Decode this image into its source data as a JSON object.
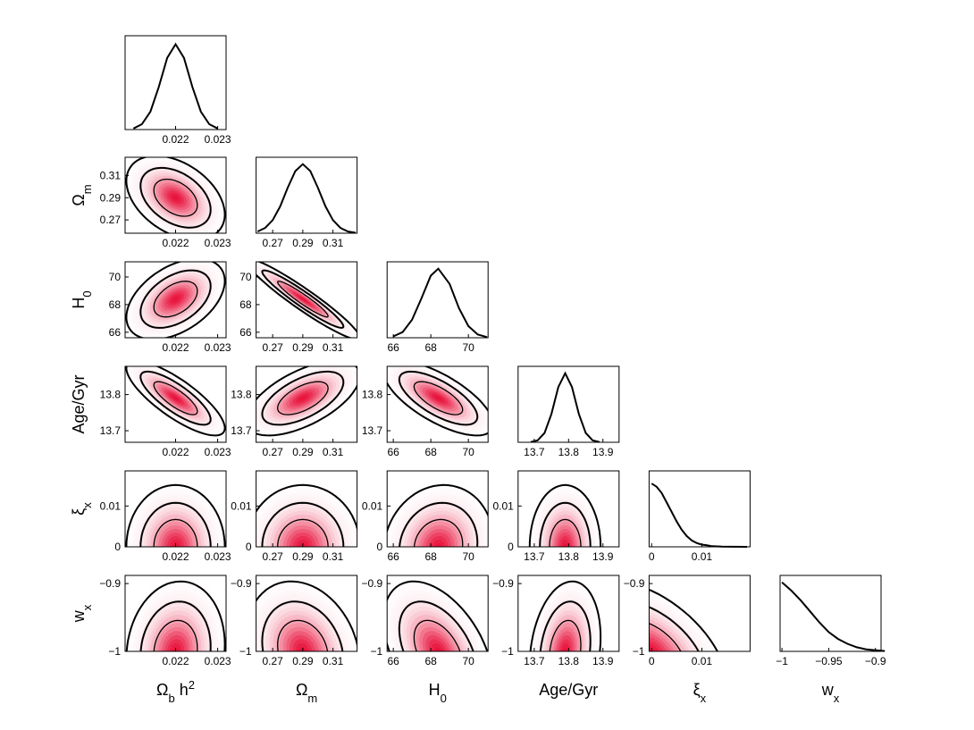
{
  "chart_data": {
    "type": "corner",
    "colors": {
      "line": "#000000",
      "density": "#e8103a"
    },
    "contour_levels": [
      1.52,
      2.45,
      3.44
    ],
    "parameters": [
      {
        "label": [
          {
            "text": "Ω"
          },
          {
            "text": "b",
            "sub": true
          },
          {
            "text": " h"
          },
          {
            "text": "2",
            "sup": true
          }
        ],
        "xlim": [
          0.0208,
          0.0232
        ],
        "xticks": [
          0.022,
          0.023
        ],
        "mean": 0.022,
        "sigma": 0.00034,
        "marginal": {
          "ylim": [
            0,
            1.1
          ],
          "x": [
            0.021,
            0.0212,
            0.0214,
            0.0216,
            0.0218,
            0.022,
            0.0222,
            0.0224,
            0.0226,
            0.0228,
            0.023
          ],
          "y": [
            0.013,
            0.063,
            0.21,
            0.5,
            0.84,
            1,
            0.84,
            0.5,
            0.21,
            0.063,
            0.013
          ]
        }
      },
      {
        "label": [
          {
            "text": "Ω"
          },
          {
            "text": "m",
            "sub": true
          }
        ],
        "xlim": [
          0.259,
          0.326
        ],
        "xticks": [
          0.27,
          0.29,
          0.31
        ],
        "ylim": [
          0.258,
          0.3265
        ],
        "yticks": [
          0.27,
          0.29,
          0.31
        ],
        "mean": 0.29,
        "sigma": 0.011,
        "marginal": {
          "ylim": [
            0,
            1.1
          ],
          "x": [
            0.26,
            0.265,
            0.27,
            0.275,
            0.28,
            0.285,
            0.29,
            0.295,
            0.3,
            0.305,
            0.31,
            0.315,
            0.32,
            0.325
          ],
          "y": [
            0.024,
            0.076,
            0.19,
            0.39,
            0.66,
            0.9,
            1,
            0.9,
            0.66,
            0.39,
            0.19,
            0.076,
            0.024,
            0.006
          ]
        }
      },
      {
        "label": [
          {
            "text": "H"
          },
          {
            "text": "0",
            "sub": true
          }
        ],
        "xlim": [
          65.67,
          71.05
        ],
        "xticks": [
          66,
          68,
          70
        ],
        "ylim": [
          65.6,
          71.1
        ],
        "yticks": [
          66,
          68,
          70
        ],
        "mean": 68.4,
        "sigma": 0.85,
        "marginal": {
          "ylim": [
            0,
            1.1
          ],
          "x": [
            66,
            66.5,
            67,
            67.5,
            68,
            68.4,
            69,
            69.5,
            70,
            70.5,
            71
          ],
          "y": [
            0.019,
            0.082,
            0.26,
            0.57,
            0.9,
            1,
            0.78,
            0.43,
            0.17,
            0.047,
            0.009
          ]
        }
      },
      {
        "label": [
          {
            "text": "Age/Gyr"
          }
        ],
        "xlim": [
          13.653,
          13.947
        ],
        "xticks": [
          13.7,
          13.8,
          13.9
        ],
        "ylim": [
          13.668,
          13.878
        ],
        "yticks": [
          13.7,
          13.8
        ],
        "mean": 13.79,
        "sigma": 0.03,
        "marginal": {
          "ylim": [
            0,
            1.1
          ],
          "x": [
            13.69,
            13.71,
            13.73,
            13.75,
            13.77,
            13.79,
            13.81,
            13.83,
            13.85,
            13.87,
            13.89
          ],
          "y": [
            0.004,
            0.028,
            0.135,
            0.41,
            0.8,
            1,
            0.8,
            0.41,
            0.135,
            0.028,
            0.004
          ]
        }
      },
      {
        "label": [
          {
            "text": "ξ"
          },
          {
            "text": "x",
            "sub": true
          }
        ],
        "xlim": [
          -0.0005,
          0.0196
        ],
        "xticks": [
          0,
          0.01
        ],
        "ylim": [
          0,
          0.0186
        ],
        "yticks": [
          0,
          0.01
        ],
        "mean": 0,
        "sigma": 0.0044,
        "marginal": {
          "ylim": [
            0,
            1.2
          ],
          "x": [
            0,
            0.001,
            0.002,
            0.003,
            0.004,
            0.005,
            0.006,
            0.007,
            0.008,
            0.009,
            0.01,
            0.011,
            0.012,
            0.014,
            0.016,
            0.019
          ],
          "y": [
            1,
            0.95,
            0.85,
            0.7,
            0.55,
            0.4,
            0.27,
            0.17,
            0.1,
            0.06,
            0.035,
            0.025,
            0.01,
            0.003,
            0.001,
            0
          ]
        }
      },
      {
        "label": [
          {
            "text": "w"
          },
          {
            "text": "x",
            "sub": true
          }
        ],
        "xlim": [
          -1.002,
          -0.894
        ],
        "xticks": [
          {
            "value": -1,
            "label": "−1"
          },
          {
            "value": -0.95,
            "label": "−0.95"
          },
          {
            "value": -0.9,
            "label": "−0.9"
          }
        ],
        "ylim": [
          -1,
          -0.888
        ],
        "yticks": [
          {
            "value": -1,
            "label": "−1"
          },
          {
            "value": -0.9,
            "label": "−0.9"
          }
        ],
        "mean": -1,
        "sigma": 0.03,
        "marginal": {
          "ylim": [
            0,
            1.1
          ],
          "x": [
            -1,
            -0.99,
            -0.98,
            -0.97,
            -0.96,
            -0.95,
            -0.94,
            -0.93,
            -0.92,
            -0.91,
            -0.9,
            -0.89
          ],
          "y": [
            1,
            0.88,
            0.74,
            0.58,
            0.42,
            0.28,
            0.18,
            0.11,
            0.06,
            0.03,
            0.015,
            0.005
          ]
        }
      }
    ],
    "panels": [
      {
        "x": 0,
        "y": 1,
        "rho": -0.4
      },
      {
        "x": 0,
        "y": 2,
        "rho": 0.45
      },
      {
        "x": 1,
        "y": 2,
        "rho": -0.95
      },
      {
        "x": 0,
        "y": 3,
        "rho": -0.8
      },
      {
        "x": 1,
        "y": 3,
        "rho": 0.6
      },
      {
        "x": 2,
        "y": 3,
        "rho": -0.7
      },
      {
        "x": 0,
        "y": 4,
        "rho": 0
      },
      {
        "x": 1,
        "y": 4,
        "rho": 0
      },
      {
        "x": 2,
        "y": 4,
        "rho": 0.1
      },
      {
        "x": 3,
        "y": 4,
        "rho": 0
      },
      {
        "x": 0,
        "y": 5,
        "rho": 0.1
      },
      {
        "x": 1,
        "y": 5,
        "rho": -0.2
      },
      {
        "x": 2,
        "y": 5,
        "rho": -0.45
      },
      {
        "x": 3,
        "y": 5,
        "rho": 0.2
      },
      {
        "x": 4,
        "y": 5,
        "rho": -0.5
      }
    ]
  }
}
